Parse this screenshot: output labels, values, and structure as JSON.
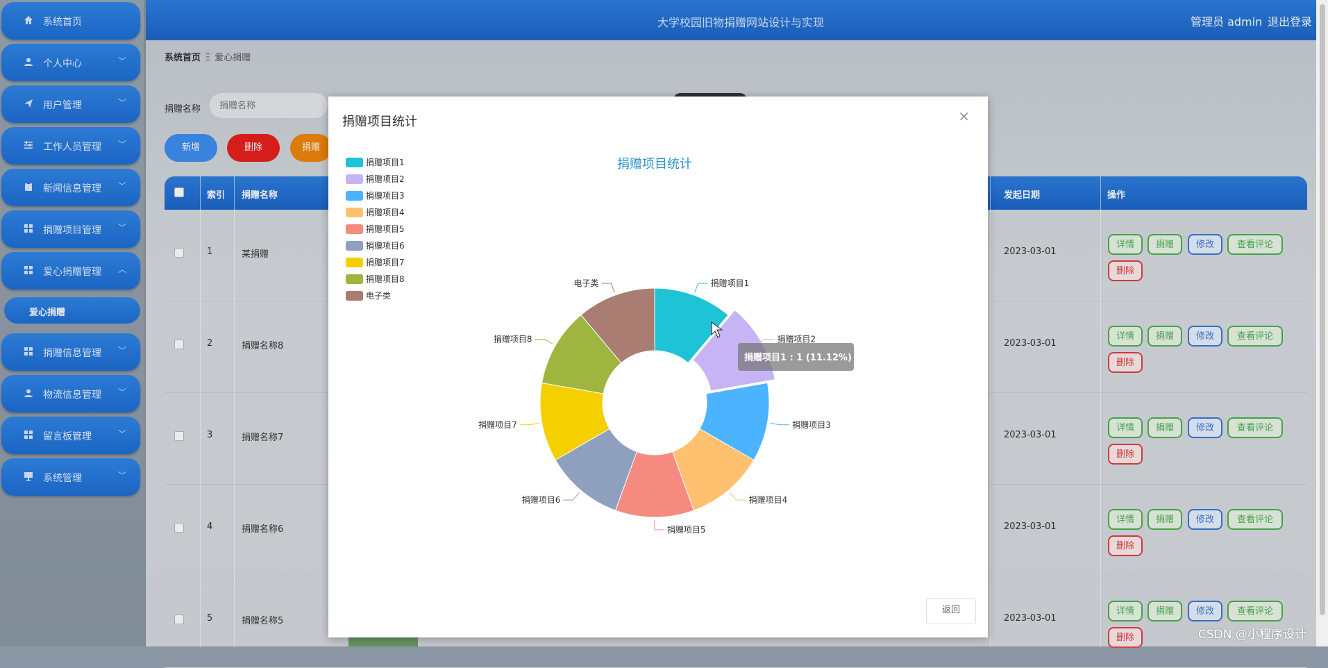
{
  "sidebar": {
    "items": [
      {
        "label": "系统首页",
        "icon": "home-icon"
      },
      {
        "label": "个人中心",
        "icon": "user-icon"
      },
      {
        "label": "用户管理",
        "icon": "send-icon"
      },
      {
        "label": "工作人员管理",
        "icon": "sliders-icon"
      },
      {
        "label": "新闻信息管理",
        "icon": "clipboard-icon"
      },
      {
        "label": "捐赠项目管理",
        "icon": "grid-icon"
      },
      {
        "label": "爱心捐赠管理",
        "icon": "grid-icon"
      },
      {
        "label": "捐赠信息管理",
        "icon": "grid-icon"
      },
      {
        "label": "物流信息管理",
        "icon": "user-icon"
      },
      {
        "label": "留言板管理",
        "icon": "grid-icon"
      },
      {
        "label": "系统管理",
        "icon": "monitor-icon"
      }
    ],
    "active_sub": "爱心捐赠"
  },
  "header": {
    "title": "大学校园旧物捐赠网站设计与实现",
    "admin": "管理员 admin",
    "logout": "退出登录"
  },
  "breadcrumb": {
    "home": "系统首页",
    "separator": "Ξ",
    "current": "爱心捐赠"
  },
  "search": {
    "label": "捐赠名称",
    "placeholder": "捐赠名称"
  },
  "toolbar": {
    "add": "新增",
    "delete": "删除",
    "stat": "捐赠"
  },
  "table": {
    "headers": {
      "index": "索引",
      "name": "捐赠名称",
      "date": "发起日期",
      "ops": "操作"
    },
    "rows": [
      {
        "index": "1",
        "name": "某捐赠",
        "date": "2023-03-01"
      },
      {
        "index": "2",
        "name": "捐赠名称8",
        "date": "2023-03-01"
      },
      {
        "index": "3",
        "name": "捐赠名称7",
        "date": "2023-03-01"
      },
      {
        "index": "4",
        "name": "捐赠名称6",
        "date": "2023-03-01"
      },
      {
        "index": "5",
        "name": "捐赠名称5",
        "date": "2023-03-01"
      }
    ],
    "actions": {
      "detail": "详情",
      "donate": "捐赠",
      "edit": "修改",
      "comments": "查看评论",
      "delete": "删除"
    }
  },
  "modal": {
    "title": "捐赠项目统计",
    "close": "×",
    "back": "返回",
    "tooltip": "捐赠项目1 : 1 (11.12%)"
  },
  "chart_data": {
    "type": "pie",
    "title": "捐赠项目统计",
    "donut": true,
    "legend_position": "top-left",
    "categories": [
      "捐赠项目1",
      "捐赠项目2",
      "捐赠项目3",
      "捐赠项目4",
      "捐赠项目5",
      "捐赠项目6",
      "捐赠项目7",
      "捐赠项目8",
      "电子类"
    ],
    "values": [
      1,
      1,
      1,
      1,
      1,
      1,
      1,
      1,
      1
    ],
    "colors": [
      "#1ec3d5",
      "#c6b4f5",
      "#4cb3ff",
      "#ffc170",
      "#f48a80",
      "#8fa0bf",
      "#f4d000",
      "#9eb540",
      "#a97d72"
    ],
    "highlighted": "捐赠项目2"
  },
  "watermark": "CSDN @小程序设计"
}
